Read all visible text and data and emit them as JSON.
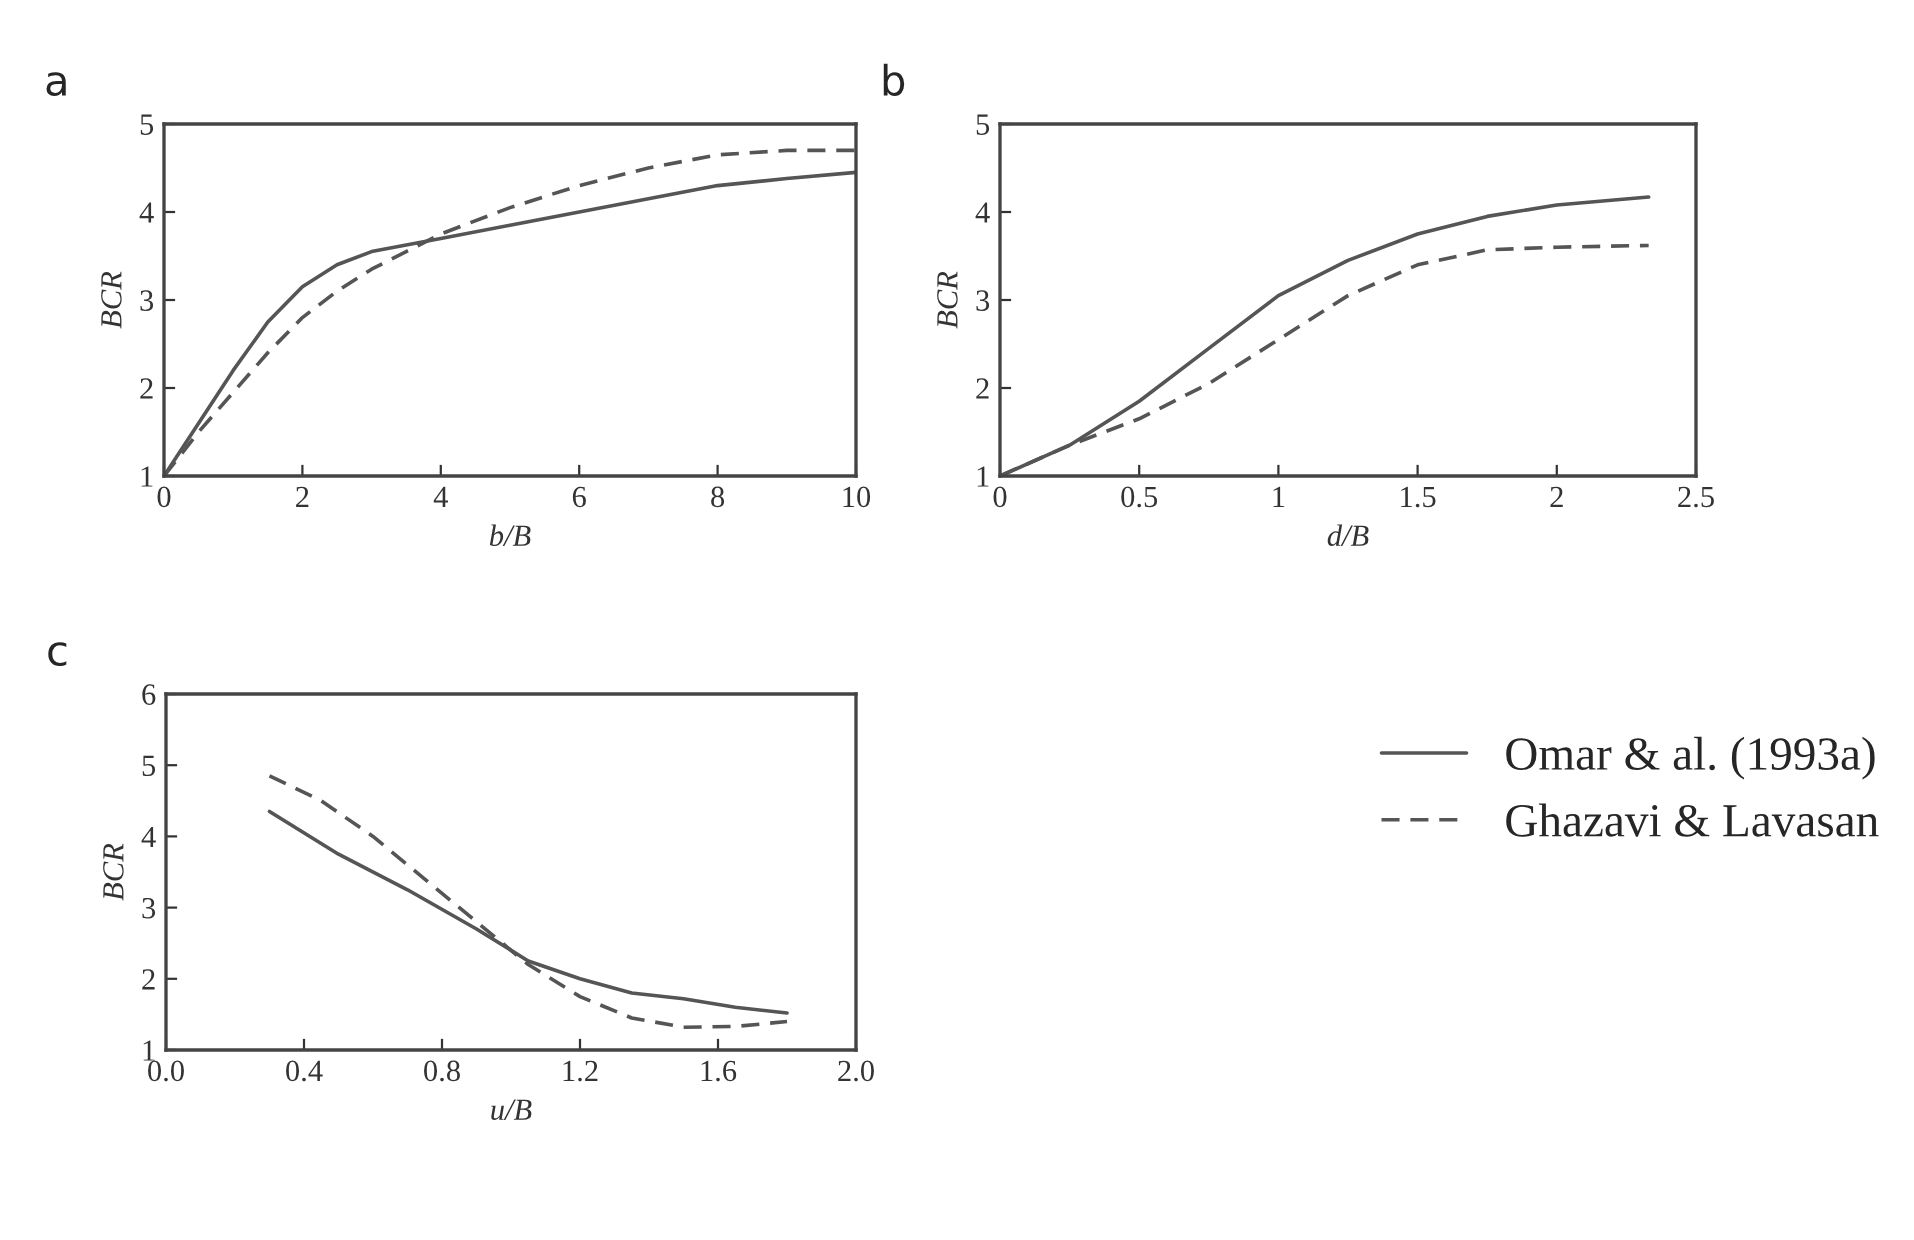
{
  "chart_data": [
    {
      "type": "line",
      "title": "a",
      "xlabel": "b/B",
      "ylabel": "BCR",
      "xlim": [
        0,
        10
      ],
      "ylim": [
        1,
        5
      ],
      "xticks": [
        0,
        2,
        4,
        6,
        8,
        10
      ],
      "yticks": [
        1,
        2,
        3,
        4,
        5
      ],
      "grid": false,
      "legend": false,
      "series": [
        {
          "color": "#555555",
          "line_style": "solid",
          "x": [
            0,
            0.5,
            1,
            1.5,
            2,
            2.5,
            3,
            4,
            5,
            6,
            7,
            8,
            9,
            10
          ],
          "values": [
            1,
            1.6,
            2.2,
            2.75,
            3.15,
            3.4,
            3.55,
            3.7,
            3.85,
            4.0,
            4.15,
            4.3,
            4.38,
            4.45
          ]
        },
        {
          "color": "#555555",
          "line_style": "dashed",
          "x": [
            0,
            0.5,
            1,
            1.5,
            2,
            2.5,
            3,
            3.5,
            4,
            5,
            6,
            7,
            8,
            9,
            10
          ],
          "values": [
            1,
            1.5,
            1.95,
            2.4,
            2.8,
            3.1,
            3.35,
            3.55,
            3.75,
            4.05,
            4.3,
            4.5,
            4.65,
            4.7,
            4.7
          ]
        }
      ]
    },
    {
      "type": "line",
      "title": "b",
      "xlabel": "d/B",
      "ylabel": "BCR",
      "xlim": [
        0,
        2.5
      ],
      "ylim": [
        1,
        5
      ],
      "xticks": [
        0,
        0.5,
        1,
        1.5,
        2,
        2.5
      ],
      "yticks": [
        1,
        2,
        3,
        4,
        5
      ],
      "grid": false,
      "legend": false,
      "series": [
        {
          "color": "#555555",
          "line_style": "solid",
          "x": [
            0,
            0.25,
            0.5,
            0.75,
            1,
            1.25,
            1.5,
            1.75,
            2,
            2.33
          ],
          "values": [
            1,
            1.35,
            1.85,
            2.45,
            3.05,
            3.45,
            3.75,
            3.95,
            4.08,
            4.17
          ]
        },
        {
          "color": "#555555",
          "line_style": "dashed",
          "x": [
            0,
            0.25,
            0.5,
            0.75,
            1,
            1.25,
            1.5,
            1.75,
            2,
            2.33
          ],
          "values": [
            1,
            1.35,
            1.65,
            2.05,
            2.55,
            3.05,
            3.4,
            3.57,
            3.6,
            3.62
          ]
        }
      ]
    },
    {
      "type": "line",
      "title": "c",
      "xlabel": "u/B",
      "ylabel": "BCR",
      "xlim": [
        0,
        2
      ],
      "ylim": [
        1,
        6
      ],
      "xticks": [
        {
          "value": 0,
          "label": "0.0"
        },
        0.4,
        0.8,
        1.2,
        1.6,
        {
          "value": 2,
          "label": "2.0"
        }
      ],
      "yticks": [
        1,
        2,
        3,
        4,
        5,
        6
      ],
      "grid": false,
      "legend": "right",
      "series": [
        {
          "name": "Omar & al. (1993a)",
          "color": "#555555",
          "line_style": "solid",
          "x": [
            0.3,
            0.5,
            0.7,
            0.9,
            1.05,
            1.2,
            1.35,
            1.5,
            1.65,
            1.8
          ],
          "values": [
            4.35,
            3.75,
            3.25,
            2.7,
            2.25,
            2.0,
            1.8,
            1.72,
            1.6,
            1.52
          ]
        },
        {
          "name": "Ghazavi & Lavasan",
          "color": "#555555",
          "line_style": "dashed",
          "x": [
            0.3,
            0.45,
            0.6,
            0.75,
            0.9,
            1.05,
            1.2,
            1.35,
            1.5,
            1.65,
            1.8
          ],
          "values": [
            4.85,
            4.5,
            4.0,
            3.4,
            2.8,
            2.2,
            1.75,
            1.45,
            1.32,
            1.33,
            1.4
          ]
        }
      ]
    }
  ]
}
